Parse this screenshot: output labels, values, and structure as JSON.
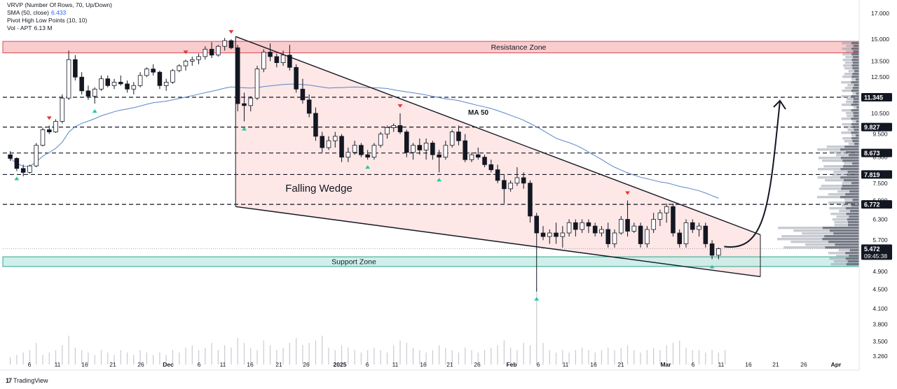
{
  "legend": {
    "line1": "VRVP (Number Of Rows, 70, Up/Down)",
    "line2_label": "SMA (50, close)",
    "line2_value": "6.433",
    "line3": "Pivot High Low Points (10, 10)",
    "line4_label": "Vol - APT",
    "line4_value": "6.13 M"
  },
  "brand": {
    "name": "TradingView",
    "logo": "17"
  },
  "colors": {
    "up": "#ffffff",
    "down": "#131722",
    "candle_border": "#131722",
    "resistance_fill": "#f8c3c6",
    "resistance_border": "#e04b55",
    "support_fill": "#c8ece6",
    "support_border": "#2aa58f",
    "wedge_fill": "#fde3e3",
    "ma": "#5b86c9",
    "pivot_high": "#e53935",
    "pivot_low": "#26c6a6",
    "volume": "#c9cbd1"
  },
  "chart_data": {
    "type": "candlestick",
    "y_scale": "log",
    "y_ticks": [
      "17.000",
      "15.000",
      "13.500",
      "12.500",
      "10.500",
      "9.500",
      "8.500",
      "7.500",
      "6.900",
      "6.300",
      "5.700",
      "4.900",
      "4.500",
      "4.100",
      "3.800",
      "3.500",
      "3.260"
    ],
    "x_ticks": [
      "6",
      "11",
      "16",
      "21",
      "26",
      "Dec",
      "6",
      "11",
      "16",
      "21",
      "26",
      "2025",
      "6",
      "11",
      "16",
      "21",
      "26",
      "Feb",
      "6",
      "11",
      "16",
      "21",
      "Mar",
      "6",
      "11",
      "16",
      "21",
      "26",
      "Apr"
    ],
    "price_labels": [
      {
        "value": "11.345",
        "style": "dark"
      },
      {
        "value": "9.827",
        "style": "dark"
      },
      {
        "value": "8.673",
        "style": "dark"
      },
      {
        "value": "7.819",
        "style": "dark"
      },
      {
        "value": "6.772",
        "style": "dark"
      },
      {
        "value": "5.472",
        "style": "current"
      }
    ],
    "countdown": "09:45:38",
    "current_price": 5.472,
    "horizontal_levels": [
      11.345,
      9.827,
      8.673,
      7.819,
      6.772
    ],
    "resistance_zone": {
      "label": "Resistance Zone",
      "from": 14.05,
      "to": 14.85
    },
    "support_zone": {
      "label": "Support Zone",
      "from": 5.02,
      "to": 5.26
    },
    "pattern_label": "Falling Wedge",
    "ma_label": "MA 50",
    "candles": [
      [
        8.6,
        8.75,
        8.35,
        8.45
      ],
      [
        8.45,
        8.5,
        7.95,
        8.05
      ],
      [
        8.05,
        8.2,
        7.75,
        7.9
      ],
      [
        7.9,
        8.2,
        7.85,
        8.15
      ],
      [
        8.15,
        9.1,
        8.1,
        9.0
      ],
      [
        9.0,
        9.8,
        8.95,
        9.7
      ],
      [
        9.7,
        9.9,
        9.5,
        9.6
      ],
      [
        9.6,
        10.2,
        9.55,
        10.1
      ],
      [
        10.1,
        11.5,
        10.0,
        11.3
      ],
      [
        11.3,
        14.2,
        11.2,
        13.6
      ],
      [
        13.6,
        13.9,
        12.3,
        12.5
      ],
      [
        12.5,
        12.8,
        11.5,
        11.7
      ],
      [
        11.7,
        12.0,
        11.2,
        11.4
      ],
      [
        11.4,
        11.9,
        11.0,
        11.8
      ],
      [
        11.8,
        12.6,
        11.7,
        12.4
      ],
      [
        12.4,
        12.6,
        11.9,
        12.0
      ],
      [
        12.0,
        12.4,
        11.8,
        12.2
      ],
      [
        12.2,
        12.6,
        12.0,
        12.1
      ],
      [
        12.1,
        12.3,
        11.6,
        11.8
      ],
      [
        11.8,
        12.2,
        11.5,
        12.0
      ],
      [
        12.0,
        12.8,
        11.9,
        12.6
      ],
      [
        12.6,
        13.1,
        12.5,
        13.0
      ],
      [
        13.0,
        13.3,
        12.6,
        12.8
      ],
      [
        12.8,
        12.9,
        11.8,
        12.0
      ],
      [
        12.0,
        12.4,
        11.7,
        12.2
      ],
      [
        12.2,
        13.0,
        12.1,
        12.9
      ],
      [
        12.9,
        13.3,
        12.8,
        13.2
      ],
      [
        13.2,
        13.6,
        12.9,
        13.5
      ],
      [
        13.5,
        13.8,
        13.2,
        13.6
      ],
      [
        13.6,
        14.0,
        13.3,
        13.8
      ],
      [
        13.8,
        14.5,
        13.6,
        14.3
      ],
      [
        14.3,
        14.8,
        13.7,
        13.9
      ],
      [
        13.9,
        14.6,
        13.8,
        14.5
      ],
      [
        14.5,
        15.1,
        14.2,
        14.9
      ],
      [
        14.9,
        15.0,
        14.3,
        14.4
      ],
      [
        14.4,
        14.6,
        10.6,
        11.0
      ],
      [
        11.0,
        11.6,
        10.1,
        10.9
      ],
      [
        10.9,
        11.4,
        10.6,
        11.3
      ],
      [
        11.3,
        13.2,
        11.2,
        13.0
      ],
      [
        13.0,
        14.3,
        12.8,
        14.1
      ],
      [
        14.1,
        14.7,
        13.5,
        13.8
      ],
      [
        13.8,
        14.0,
        13.1,
        13.4
      ],
      [
        13.4,
        14.2,
        13.2,
        13.9
      ],
      [
        13.9,
        14.6,
        12.9,
        13.1
      ],
      [
        13.1,
        13.3,
        11.6,
        11.8
      ],
      [
        11.8,
        12.4,
        11.0,
        11.2
      ],
      [
        11.2,
        11.5,
        10.3,
        10.5
      ],
      [
        10.5,
        10.8,
        9.2,
        9.4
      ],
      [
        9.4,
        9.6,
        8.7,
        8.9
      ],
      [
        8.9,
        9.4,
        8.8,
        9.2
      ],
      [
        9.2,
        9.6,
        8.9,
        9.4
      ],
      [
        9.4,
        9.5,
        8.3,
        8.5
      ],
      [
        8.5,
        8.9,
        8.3,
        8.7
      ],
      [
        8.7,
        9.2,
        8.6,
        9.0
      ],
      [
        9.0,
        9.1,
        8.5,
        8.6
      ],
      [
        8.6,
        8.8,
        8.4,
        8.5
      ],
      [
        8.5,
        9.1,
        8.4,
        9.0
      ],
      [
        9.0,
        9.6,
        8.9,
        9.5
      ],
      [
        9.5,
        9.9,
        9.3,
        9.8
      ],
      [
        9.8,
        10.0,
        9.6,
        9.9
      ],
      [
        9.9,
        10.5,
        9.5,
        9.6
      ],
      [
        9.6,
        9.7,
        8.5,
        8.7
      ],
      [
        8.7,
        9.1,
        8.4,
        9.0
      ],
      [
        9.0,
        9.3,
        8.6,
        8.8
      ],
      [
        8.8,
        9.3,
        8.4,
        9.1
      ],
      [
        9.1,
        9.2,
        8.4,
        8.6
      ],
      [
        8.6,
        8.8,
        7.9,
        8.5
      ],
      [
        8.5,
        9.2,
        8.4,
        9.0
      ],
      [
        9.0,
        9.7,
        8.9,
        9.6
      ],
      [
        9.6,
        9.9,
        9.0,
        9.2
      ],
      [
        9.2,
        9.5,
        8.3,
        8.4
      ],
      [
        8.4,
        8.7,
        8.3,
        8.6
      ],
      [
        8.6,
        8.9,
        8.4,
        8.5
      ],
      [
        8.5,
        8.6,
        8.1,
        8.2
      ],
      [
        8.2,
        8.4,
        7.9,
        8.0
      ],
      [
        8.0,
        8.2,
        7.5,
        7.6
      ],
      [
        7.6,
        7.8,
        6.8,
        7.3
      ],
      [
        7.3,
        7.6,
        7.2,
        7.5
      ],
      [
        7.5,
        8.1,
        7.4,
        7.7
      ],
      [
        7.7,
        7.9,
        7.3,
        7.5
      ],
      [
        7.5,
        7.6,
        6.2,
        6.4
      ],
      [
        6.4,
        6.5,
        4.45,
        5.9
      ],
      [
        5.9,
        6.1,
        5.7,
        5.8
      ],
      [
        5.8,
        6.0,
        5.6,
        5.9
      ],
      [
        5.9,
        6.2,
        5.6,
        5.8
      ],
      [
        5.8,
        6.1,
        5.5,
        5.9
      ],
      [
        5.9,
        6.3,
        5.8,
        6.2
      ],
      [
        6.2,
        6.3,
        5.8,
        6.0
      ],
      [
        6.0,
        6.3,
        5.9,
        6.2
      ],
      [
        6.2,
        6.3,
        5.9,
        6.1
      ],
      [
        6.1,
        6.2,
        5.8,
        5.9
      ],
      [
        5.9,
        6.1,
        5.8,
        6.0
      ],
      [
        6.0,
        6.2,
        5.5,
        5.6
      ],
      [
        5.6,
        6.0,
        5.5,
        5.9
      ],
      [
        5.9,
        6.4,
        5.85,
        6.3
      ],
      [
        6.3,
        6.9,
        5.8,
        5.95
      ],
      [
        5.95,
        6.2,
        5.9,
        6.1
      ],
      [
        6.1,
        6.2,
        5.5,
        5.6
      ],
      [
        5.6,
        6.1,
        5.5,
        6.0
      ],
      [
        6.0,
        6.5,
        5.9,
        6.3
      ],
      [
        6.3,
        6.6,
        6.1,
        6.5
      ],
      [
        6.5,
        6.8,
        6.2,
        6.7
      ],
      [
        6.7,
        6.8,
        5.8,
        5.9
      ],
      [
        5.9,
        6.0,
        5.5,
        5.6
      ],
      [
        5.6,
        6.3,
        5.5,
        6.2
      ],
      [
        6.2,
        6.3,
        5.9,
        6.0
      ],
      [
        6.0,
        6.2,
        5.8,
        6.1
      ],
      [
        6.1,
        6.2,
        5.5,
        5.6
      ],
      [
        5.6,
        5.7,
        5.2,
        5.3
      ],
      [
        5.3,
        5.5,
        5.2,
        5.47
      ]
    ],
    "volumes": [
      3,
      4,
      5,
      6,
      9,
      4,
      5,
      6,
      8,
      12,
      7,
      6,
      5,
      4,
      6,
      5,
      4,
      6,
      5,
      4,
      6,
      5,
      4,
      5,
      4,
      6,
      5,
      7,
      8,
      6,
      7,
      9,
      6,
      8,
      7,
      11,
      9,
      7,
      6,
      10,
      8,
      6,
      7,
      9,
      11,
      8,
      9,
      10,
      12,
      7,
      6,
      8,
      7,
      6,
      5,
      6,
      7,
      6,
      5,
      8,
      10,
      9,
      7,
      6,
      5,
      6,
      8,
      7,
      6,
      5,
      7,
      6,
      5,
      6,
      7,
      8,
      10,
      7,
      6,
      9,
      8,
      32,
      9,
      6,
      5,
      6,
      5,
      6,
      7,
      6,
      5,
      6,
      7,
      6,
      7,
      8,
      6,
      5,
      6,
      7,
      6,
      8,
      9,
      10,
      7,
      6,
      6,
      5,
      6,
      5,
      6
    ],
    "pivot_highs": [
      13.6,
      15.0,
      10.5,
      9.9,
      6.9
    ],
    "pivot_lows": [
      8.0,
      10.1,
      10.9,
      8.4,
      7.9,
      4.45,
      5.2
    ]
  }
}
